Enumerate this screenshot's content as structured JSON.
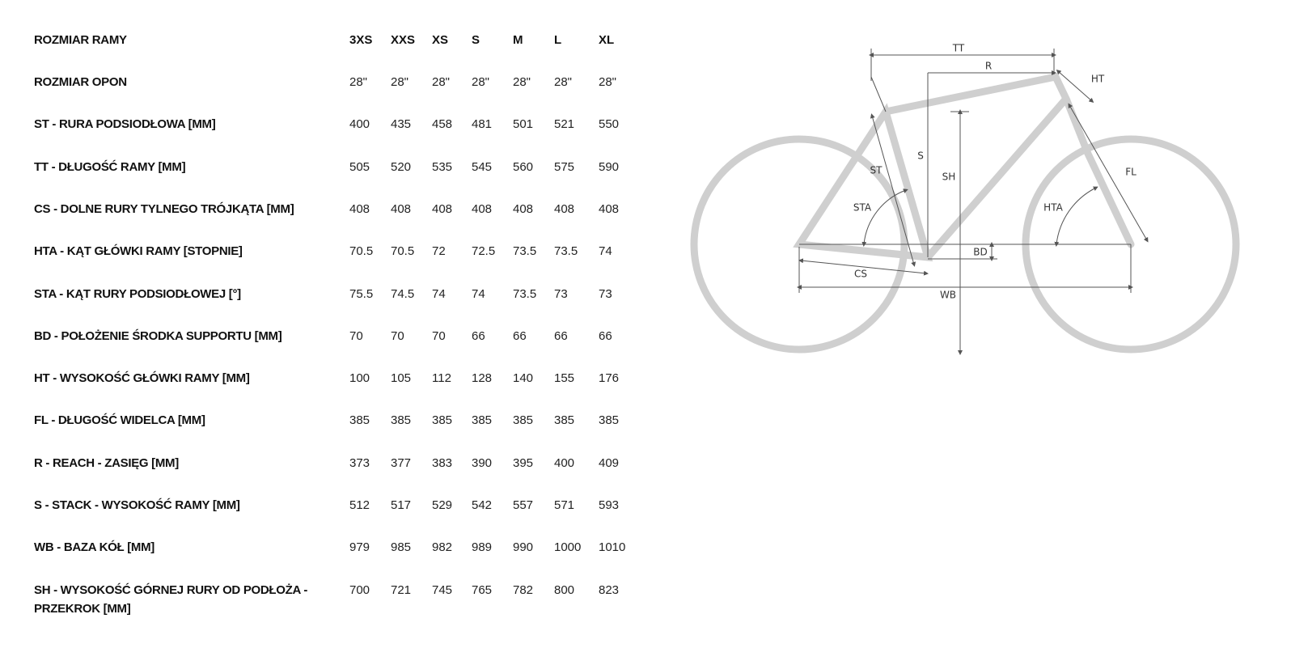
{
  "table": {
    "header": {
      "label": "ROZMIAR RAMY",
      "sizes": [
        "3XS",
        "XXS",
        "XS",
        "S",
        "M",
        "L",
        "XL"
      ]
    },
    "rows": [
      {
        "label": "ROZMIAR OPON",
        "values": [
          "28\"",
          "28\"",
          "28\"",
          "28\"",
          "28\"",
          "28\"",
          "28\""
        ]
      },
      {
        "label": "ST - RURA PODSIODŁOWA [MM]",
        "values": [
          "400",
          "435",
          "458",
          "481",
          "501",
          "521",
          "550"
        ]
      },
      {
        "label": "TT - DŁUGOŚĆ RAMY [MM]",
        "values": [
          "505",
          "520",
          "535",
          "545",
          "560",
          "575",
          "590"
        ]
      },
      {
        "label": "CS - DOLNE RURY TYLNEGO TRÓJKĄTA [MM]",
        "values": [
          "408",
          "408",
          "408",
          "408",
          "408",
          "408",
          "408"
        ]
      },
      {
        "label": "HTA - KĄT GŁÓWKI RAMY [STOPNIE]",
        "values": [
          "70.5",
          "70.5",
          "72",
          "72.5",
          "73.5",
          "73.5",
          "74"
        ]
      },
      {
        "label": "STA - KĄT RURY PODSIODŁOWEJ [°]",
        "values": [
          "75.5",
          "74.5",
          "74",
          "74",
          "73.5",
          "73",
          "73"
        ]
      },
      {
        "label": "BD - POŁOŻENIE ŚRODKA SUPPORTU [MM]",
        "values": [
          "70",
          "70",
          "70",
          "66",
          "66",
          "66",
          "66"
        ]
      },
      {
        "label": "HT - WYSOKOŚĆ GŁÓWKI RAMY [MM]",
        "values": [
          "100",
          "105",
          "112",
          "128",
          "140",
          "155",
          "176"
        ]
      },
      {
        "label": "FL - DŁUGOŚĆ WIDELCA [MM]",
        "values": [
          "385",
          "385",
          "385",
          "385",
          "385",
          "385",
          "385"
        ]
      },
      {
        "label": "R - REACH - ZASIĘG [MM]",
        "values": [
          "373",
          "377",
          "383",
          "390",
          "395",
          "400",
          "409"
        ]
      },
      {
        "label": "S - STACK - WYSOKOŚĆ RAMY [MM]",
        "values": [
          "512",
          "517",
          "529",
          "542",
          "557",
          "571",
          "593"
        ]
      },
      {
        "label": "WB - BAZA KÓŁ [MM]",
        "values": [
          "979",
          "985",
          "982",
          "989",
          "990",
          "1000",
          "1010"
        ]
      },
      {
        "label": "SH - WYSOKOŚĆ GÓRNEJ RURY OD PODŁOŻA - PRZEKROK [MM]",
        "values": [
          "700",
          "721",
          "745",
          "765",
          "782",
          "800",
          "823"
        ]
      }
    ]
  },
  "diagram": {
    "labels": {
      "tt": "TT",
      "r": "R",
      "ht": "HT",
      "s": "S",
      "sh": "SH",
      "st": "ST",
      "sta": "STA",
      "hta": "HTA",
      "fl": "FL",
      "bd": "BD",
      "cs": "CS",
      "wb": "WB"
    }
  }
}
